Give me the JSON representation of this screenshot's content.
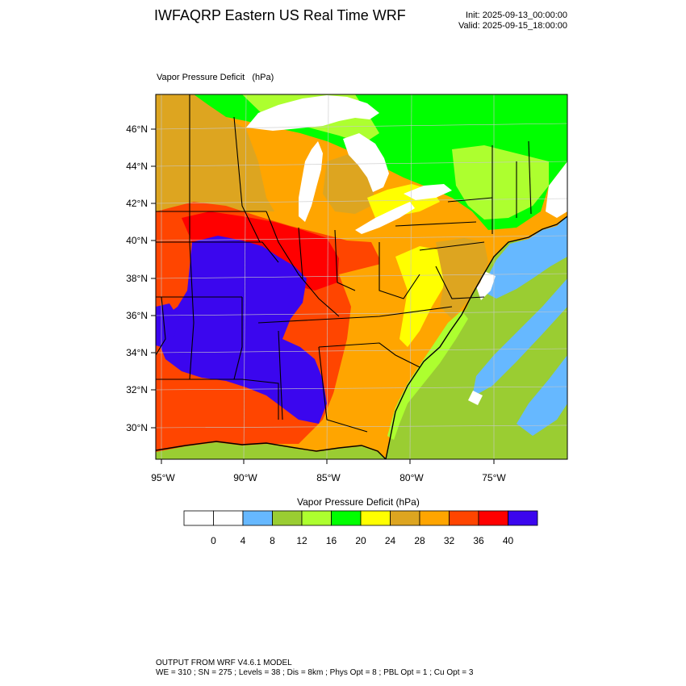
{
  "header": {
    "title": "IWFAQRP Eastern US Real Time WRF",
    "init": "Init: 2025-09-13_00:00:00",
    "valid": "Valid: 2025-09-15_18:00:00"
  },
  "map": {
    "label": "Vapor Pressure Deficit   (hPa)",
    "lat_labels": [
      "46°N",
      "44°N",
      "42°N",
      "40°N",
      "38°N",
      "36°N",
      "34°N",
      "32°N",
      "30°N"
    ],
    "lon_labels": [
      "95°W",
      "90°W",
      "85°W",
      "80°W",
      "75°W"
    ],
    "colors": {
      "water": "#66b8ff",
      "c8": "#9acd32",
      "c12": "#adff2f",
      "c16": "#00ff00",
      "c20": "#ffff00",
      "c24": "#dda520",
      "c28": "#ffa500",
      "c32": "#ff4500",
      "c36": "#ff0000",
      "c40": "#3b06ee"
    }
  },
  "colorbar": {
    "title": "Vapor Pressure Deficit  (hPa)",
    "tick_labels": [
      "0",
      "4",
      "8",
      "12",
      "16",
      "20",
      "24",
      "28",
      "32",
      "36",
      "40"
    ],
    "colors": [
      "#ffffff",
      "#ffffff",
      "#66b8ff",
      "#9acd32",
      "#adff2f",
      "#00ff00",
      "#ffff00",
      "#dda520",
      "#ffa500",
      "#ff4500",
      "#ff0000",
      "#3b06ee"
    ]
  },
  "footer": {
    "line1": "OUTPUT FROM WRF V4.6.1 MODEL",
    "line2": "WE = 310 ; SN = 275 ; Levels = 38 ; Dis = 8km ; Phys Opt = 8 ; PBL Opt = 1 ; Cu Opt = 3"
  }
}
